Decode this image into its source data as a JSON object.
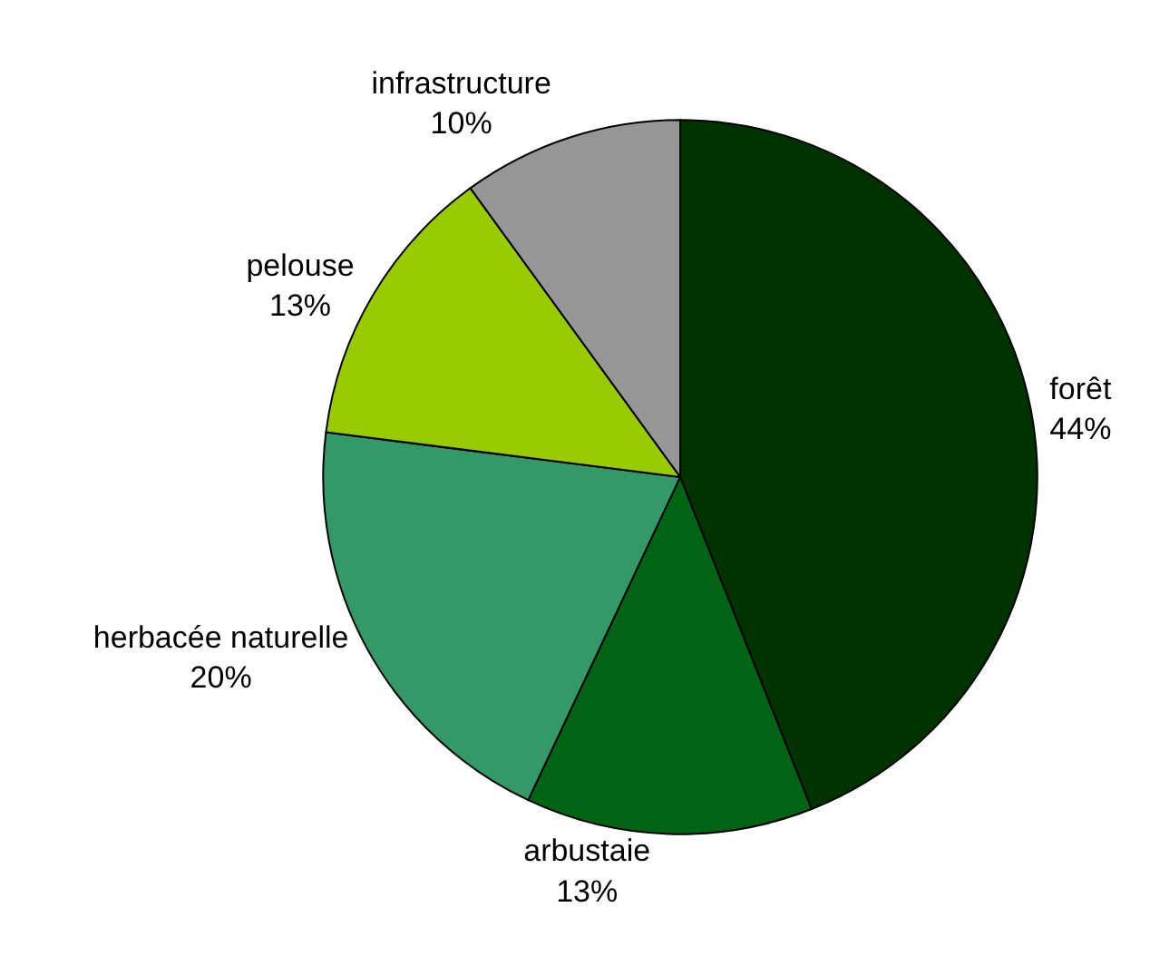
{
  "chart_data": {
    "type": "pie",
    "categories": [
      "forêt",
      "arbustaie",
      "herbacée naturelle",
      "pelouse",
      "infrastructure"
    ],
    "values": [
      44,
      13,
      20,
      13,
      10
    ],
    "value_labels": [
      "44%",
      "13%",
      "20%",
      "13%",
      "10%"
    ],
    "colors": [
      "#003300",
      "#006414",
      "#339966",
      "#99cc00",
      "#969696"
    ],
    "legend": false
  }
}
